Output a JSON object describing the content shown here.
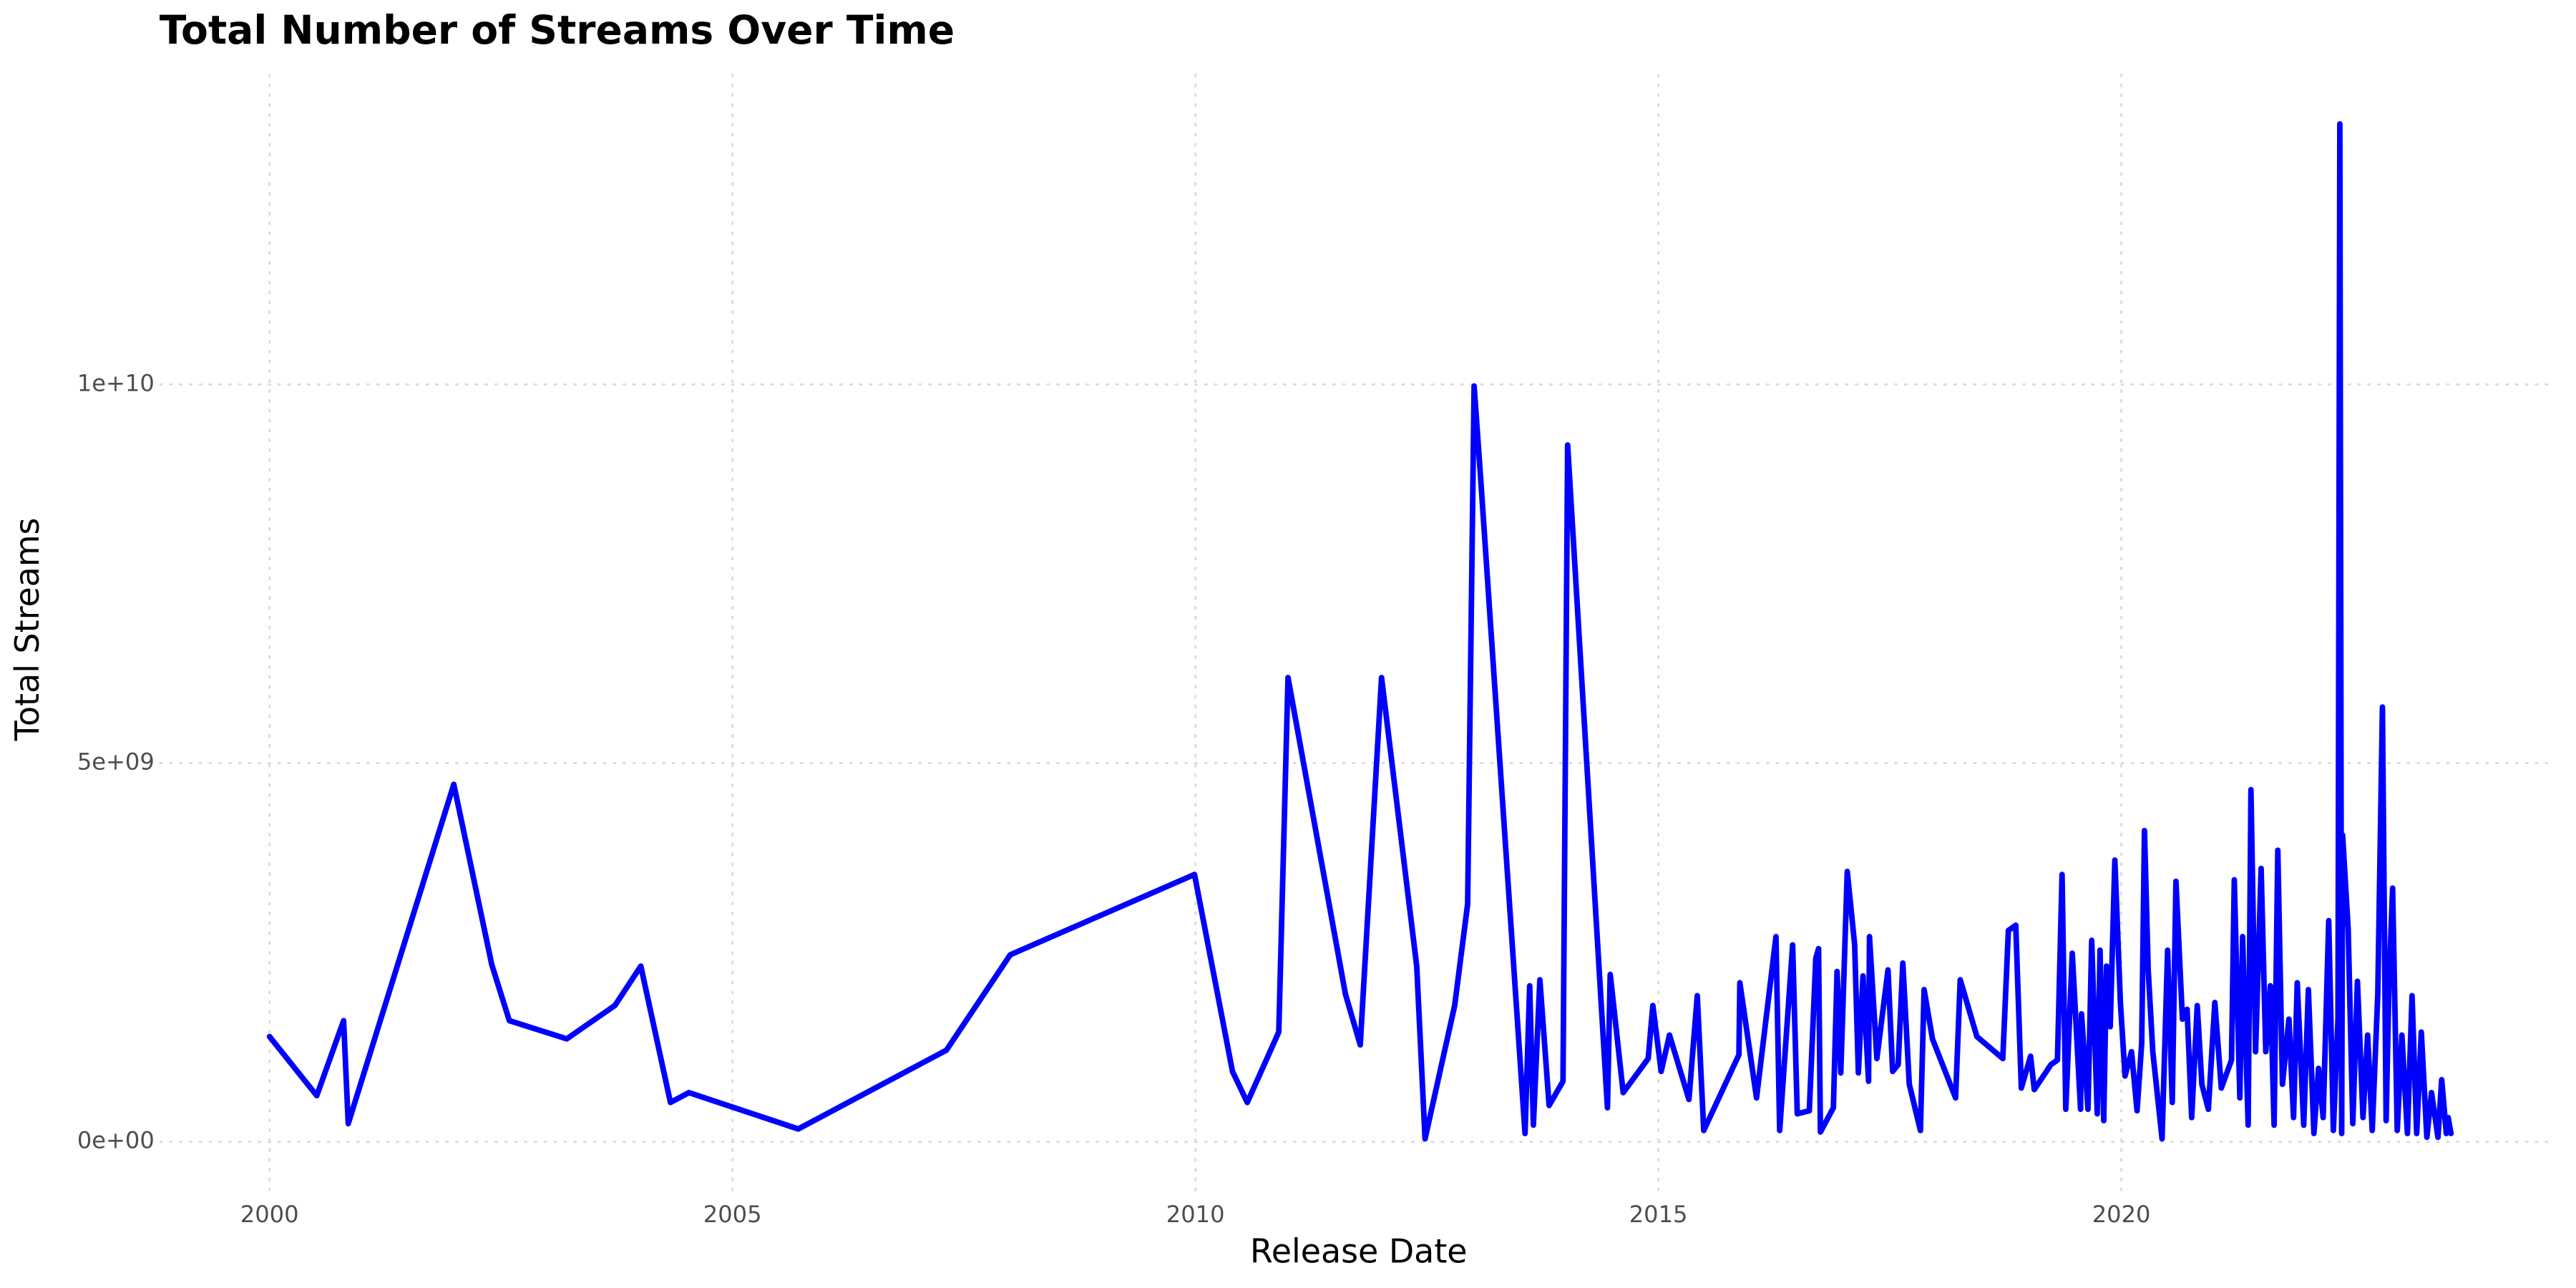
{
  "chart_data": {
    "type": "line",
    "title": "Total Number of Streams Over Time",
    "x_label": "Release Date",
    "y_label": "Total Streams",
    "color": "#0000ff",
    "grid": true,
    "xlim": [
      1998.81,
      2024.68
    ],
    "xticks": [
      2000,
      2005,
      2010,
      2015,
      2020
    ],
    "ylim": [
      -650000000.0,
      14100000000.0
    ],
    "yticks": [
      {
        "value": 0,
        "label": "0e+00"
      },
      {
        "value": 5000000000.0,
        "label": "5e+09"
      },
      {
        "value": 10000000000.0,
        "label": "1e+10"
      }
    ],
    "x": [
      2000.0,
      2000.51,
      2000.8,
      2000.85,
      2001.99,
      2002.4,
      2002.59,
      2003.21,
      2003.73,
      2004.01,
      2004.33,
      2004.53,
      2005.71,
      2007.31,
      2008.0,
      2009.99,
      2010.4,
      2010.56,
      2010.9,
      2011.0,
      2011.62,
      2011.78,
      2012.01,
      2012.39,
      2012.48,
      2012.8,
      2012.94,
      2013.01,
      2013.08,
      2013.56,
      2013.61,
      2013.65,
      2013.72,
      2013.82,
      2013.97,
      2014.02,
      2014.45,
      2014.48,
      2014.62,
      2014.89,
      2014.94,
      2015.03,
      2015.12,
      2015.33,
      2015.42,
      2015.49,
      2015.87,
      2015.88,
      2016.06,
      2016.27,
      2016.31,
      2016.45,
      2016.5,
      2016.63,
      2016.7,
      2016.73,
      2016.75,
      2016.89,
      2016.93,
      2016.97,
      2017.04,
      2017.12,
      2017.16,
      2017.21,
      2017.27,
      2017.28,
      2017.36,
      2017.48,
      2017.53,
      2017.59,
      2017.64,
      2017.71,
      2017.83,
      2017.87,
      2017.96,
      2018.21,
      2018.26,
      2018.44,
      2018.72,
      2018.78,
      2018.86,
      2018.92,
      2019.02,
      2019.06,
      2019.24,
      2019.31,
      2019.36,
      2019.4,
      2019.47,
      2019.56,
      2019.57,
      2019.64,
      2019.68,
      2019.74,
      2019.77,
      2019.81,
      2019.84,
      2019.88,
      2019.93,
      2019.99,
      2020.04,
      2020.11,
      2020.17,
      2020.22,
      2020.25,
      2020.29,
      2020.34,
      2020.44,
      2020.5,
      2020.55,
      2020.59,
      2020.66,
      2020.71,
      2020.76,
      2020.82,
      2020.87,
      2020.94,
      2021.01,
      2021.08,
      2021.19,
      2021.22,
      2021.28,
      2021.31,
      2021.37,
      2021.4,
      2021.45,
      2021.51,
      2021.56,
      2021.61,
      2021.65,
      2021.69,
      2021.74,
      2021.81,
      2021.86,
      2021.9,
      2021.97,
      2022.02,
      2022.08,
      2022.13,
      2022.18,
      2022.24,
      2022.29,
      2022.34,
      2022.36,
      2022.38,
      2022.39,
      2022.45,
      2022.5,
      2022.55,
      2022.61,
      2022.66,
      2022.71,
      2022.77,
      2022.82,
      2022.86,
      2022.89,
      2022.93,
      2022.98,
      2023.03,
      2023.09,
      2023.14,
      2023.19,
      2023.24,
      2023.3,
      2023.35,
      2023.42,
      2023.46,
      2023.51,
      2023.53,
      2023.56
    ],
    "values": [
      1390000000.0,
      610000000.0,
      1600000000.0,
      240000000.0,
      4720000000.0,
      2340000000.0,
      1600000000.0,
      1360000000.0,
      1800000000.0,
      2320000000.0,
      520000000.0,
      650000000.0,
      170000000.0,
      1210000000.0,
      2470000000.0,
      3530000000.0,
      930000000.0,
      520000000.0,
      1450000000.0,
      6130000000.0,
      1950000000.0,
      1280000000.0,
      6130000000.0,
      2320000000.0,
      40000000.0,
      1800000000.0,
      3140000000.0,
      9980000000.0,
      8770000000.0,
      110000000.0,
      2060000000.0,
      220000000.0,
      2140000000.0,
      480000000.0,
      800000000.0,
      9200000000.0,
      450000000.0,
      2210000000.0,
      650000000.0,
      1100000000.0,
      1800000000.0,
      930000000.0,
      1410000000.0,
      560000000.0,
      1930000000.0,
      150000000.0,
      1150000000.0,
      2100000000.0,
      580000000.0,
      2710000000.0,
      150000000.0,
      2600000000.0,
      370000000.0,
      410000000.0,
      2420000000.0,
      2550000000.0,
      130000000.0,
      450000000.0,
      2250000000.0,
      910000000.0,
      3570000000.0,
      2600000000.0,
      910000000.0,
      2190000000.0,
      800000000.0,
      2710000000.0,
      1100000000.0,
      2270000000.0,
      930000000.0,
      1020000000.0,
      2360000000.0,
      760000000.0,
      150000000.0,
      2010000000.0,
      1360000000.0,
      580000000.0,
      2140000000.0,
      1390000000.0,
      1100000000.0,
      2790000000.0,
      2860000000.0,
      710000000.0,
      1130000000.0,
      690000000.0,
      1020000000.0,
      1080000000.0,
      3530000000.0,
      430000000.0,
      2490000000.0,
      430000000.0,
      1690000000.0,
      430000000.0,
      2660000000.0,
      370000000.0,
      2530000000.0,
      280000000.0,
      2320000000.0,
      1520000000.0,
      3720000000.0,
      1840000000.0,
      870000000.0,
      1190000000.0,
      410000000.0,
      1300000000.0,
      4110000000.0,
      2270000000.0,
      1190000000.0,
      40000000.0,
      2530000000.0,
      520000000.0,
      3440000000.0,
      1620000000.0,
      1750000000.0,
      320000000.0,
      1800000000.0,
      760000000.0,
      430000000.0,
      1840000000.0,
      710000000.0,
      1080000000.0,
      3460000000.0,
      580000000.0,
      2710000000.0,
      220000000.0,
      4650000000.0,
      1190000000.0,
      3610000000.0,
      1190000000.0,
      2060000000.0,
      220000000.0,
      3850000000.0,
      760000000.0,
      1620000000.0,
      320000000.0,
      2100000000.0,
      220000000.0,
      2010000000.0,
      110000000.0,
      970000000.0,
      320000000.0,
      2920000000.0,
      150000000.0,
      1620000000.0,
      13440000000.0,
      110000000.0,
      4050000000.0,
      2810000000.0,
      240000000.0,
      2120000000.0,
      320000000.0,
      1410000000.0,
      150000000.0,
      1950000000.0,
      5740000000.0,
      280000000.0,
      2060000000.0,
      3350000000.0,
      150000000.0,
      1410000000.0,
      110000000.0,
      1930000000.0,
      110000000.0,
      1450000000.0,
      60000000.0,
      650000000.0,
      60000000.0,
      820000000.0,
      110000000.0,
      320000000.0,
      110000000.0
    ]
  }
}
